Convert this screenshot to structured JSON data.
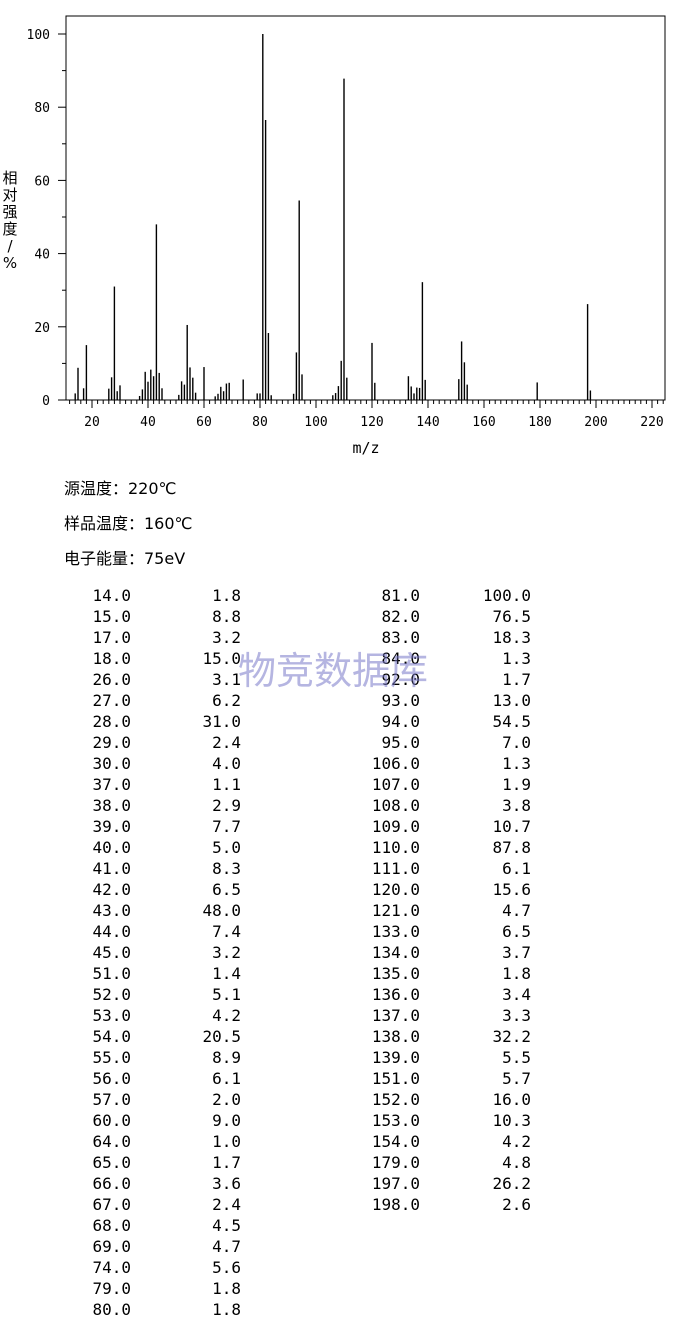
{
  "chart_data": {
    "type": "bar",
    "xlabel": "m/z",
    "ylabel": "相对强度/%",
    "xlim": [
      10,
      225
    ],
    "ylim": [
      0,
      100
    ],
    "xticks": [
      "20",
      "40",
      "60",
      "80",
      "100",
      "120",
      "140",
      "160",
      "180",
      "200",
      "220"
    ],
    "yticks": [
      "0",
      "20",
      "40",
      "60",
      "80",
      "100"
    ],
    "grid": false,
    "peaks": [
      {
        "mz": 14.0,
        "intensity": 1.8
      },
      {
        "mz": 15.0,
        "intensity": 8.8
      },
      {
        "mz": 17.0,
        "intensity": 3.2
      },
      {
        "mz": 18.0,
        "intensity": 15.0
      },
      {
        "mz": 26.0,
        "intensity": 3.1
      },
      {
        "mz": 27.0,
        "intensity": 6.2
      },
      {
        "mz": 28.0,
        "intensity": 31.0
      },
      {
        "mz": 29.0,
        "intensity": 2.4
      },
      {
        "mz": 30.0,
        "intensity": 4.0
      },
      {
        "mz": 37.0,
        "intensity": 1.1
      },
      {
        "mz": 38.0,
        "intensity": 2.9
      },
      {
        "mz": 39.0,
        "intensity": 7.7
      },
      {
        "mz": 40.0,
        "intensity": 5.0
      },
      {
        "mz": 41.0,
        "intensity": 8.3
      },
      {
        "mz": 42.0,
        "intensity": 6.5
      },
      {
        "mz": 43.0,
        "intensity": 48.0
      },
      {
        "mz": 44.0,
        "intensity": 7.4
      },
      {
        "mz": 45.0,
        "intensity": 3.2
      },
      {
        "mz": 51.0,
        "intensity": 1.4
      },
      {
        "mz": 52.0,
        "intensity": 5.1
      },
      {
        "mz": 53.0,
        "intensity": 4.2
      },
      {
        "mz": 54.0,
        "intensity": 20.5
      },
      {
        "mz": 55.0,
        "intensity": 8.9
      },
      {
        "mz": 56.0,
        "intensity": 6.1
      },
      {
        "mz": 57.0,
        "intensity": 2.0
      },
      {
        "mz": 60.0,
        "intensity": 9.0
      },
      {
        "mz": 64.0,
        "intensity": 1.0
      },
      {
        "mz": 65.0,
        "intensity": 1.7
      },
      {
        "mz": 66.0,
        "intensity": 3.6
      },
      {
        "mz": 67.0,
        "intensity": 2.4
      },
      {
        "mz": 68.0,
        "intensity": 4.5
      },
      {
        "mz": 69.0,
        "intensity": 4.7
      },
      {
        "mz": 74.0,
        "intensity": 5.6
      },
      {
        "mz": 79.0,
        "intensity": 1.8
      },
      {
        "mz": 80.0,
        "intensity": 1.8
      },
      {
        "mz": 81.0,
        "intensity": 100.0
      },
      {
        "mz": 82.0,
        "intensity": 76.5
      },
      {
        "mz": 83.0,
        "intensity": 18.3
      },
      {
        "mz": 84.0,
        "intensity": 1.3
      },
      {
        "mz": 92.0,
        "intensity": 1.7
      },
      {
        "mz": 93.0,
        "intensity": 13.0
      },
      {
        "mz": 94.0,
        "intensity": 54.5
      },
      {
        "mz": 95.0,
        "intensity": 7.0
      },
      {
        "mz": 106.0,
        "intensity": 1.3
      },
      {
        "mz": 107.0,
        "intensity": 1.9
      },
      {
        "mz": 108.0,
        "intensity": 3.8
      },
      {
        "mz": 109.0,
        "intensity": 10.7
      },
      {
        "mz": 110.0,
        "intensity": 87.8
      },
      {
        "mz": 111.0,
        "intensity": 6.1
      },
      {
        "mz": 120.0,
        "intensity": 15.6
      },
      {
        "mz": 121.0,
        "intensity": 4.7
      },
      {
        "mz": 133.0,
        "intensity": 6.5
      },
      {
        "mz": 134.0,
        "intensity": 3.7
      },
      {
        "mz": 135.0,
        "intensity": 1.8
      },
      {
        "mz": 136.0,
        "intensity": 3.4
      },
      {
        "mz": 137.0,
        "intensity": 3.3
      },
      {
        "mz": 138.0,
        "intensity": 32.2
      },
      {
        "mz": 139.0,
        "intensity": 5.5
      },
      {
        "mz": 151.0,
        "intensity": 5.7
      },
      {
        "mz": 152.0,
        "intensity": 16.0
      },
      {
        "mz": 153.0,
        "intensity": 10.3
      },
      {
        "mz": 154.0,
        "intensity": 4.2
      },
      {
        "mz": 179.0,
        "intensity": 4.8
      },
      {
        "mz": 197.0,
        "intensity": 26.2
      },
      {
        "mz": 198.0,
        "intensity": 2.6
      }
    ]
  },
  "conditions": {
    "source_temp": "源温度：220℃",
    "sample_temp": "样品温度：160℃",
    "electron_energy": "电子能量：75eV"
  },
  "table": {
    "left": [
      [
        "14.0",
        "1.8"
      ],
      [
        "15.0",
        "8.8"
      ],
      [
        "17.0",
        "3.2"
      ],
      [
        "18.0",
        "15.0"
      ],
      [
        "26.0",
        "3.1"
      ],
      [
        "27.0",
        "6.2"
      ],
      [
        "28.0",
        "31.0"
      ],
      [
        "29.0",
        "2.4"
      ],
      [
        "30.0",
        "4.0"
      ],
      [
        "37.0",
        "1.1"
      ],
      [
        "38.0",
        "2.9"
      ],
      [
        "39.0",
        "7.7"
      ],
      [
        "40.0",
        "5.0"
      ],
      [
        "41.0",
        "8.3"
      ],
      [
        "42.0",
        "6.5"
      ],
      [
        "43.0",
        "48.0"
      ],
      [
        "44.0",
        "7.4"
      ],
      [
        "45.0",
        "3.2"
      ],
      [
        "51.0",
        "1.4"
      ],
      [
        "52.0",
        "5.1"
      ],
      [
        "53.0",
        "4.2"
      ],
      [
        "54.0",
        "20.5"
      ],
      [
        "55.0",
        "8.9"
      ],
      [
        "56.0",
        "6.1"
      ],
      [
        "57.0",
        "2.0"
      ],
      [
        "60.0",
        "9.0"
      ],
      [
        "64.0",
        "1.0"
      ],
      [
        "65.0",
        "1.7"
      ],
      [
        "66.0",
        "3.6"
      ],
      [
        "67.0",
        "2.4"
      ],
      [
        "68.0",
        "4.5"
      ],
      [
        "69.0",
        "4.7"
      ],
      [
        "74.0",
        "5.6"
      ],
      [
        "79.0",
        "1.8"
      ],
      [
        "80.0",
        "1.8"
      ]
    ],
    "right": [
      [
        "81.0",
        "100.0"
      ],
      [
        "82.0",
        "76.5"
      ],
      [
        "83.0",
        "18.3"
      ],
      [
        "84.0",
        "1.3"
      ],
      [
        "92.0",
        "1.7"
      ],
      [
        "93.0",
        "13.0"
      ],
      [
        "94.0",
        "54.5"
      ],
      [
        "95.0",
        "7.0"
      ],
      [
        "106.0",
        "1.3"
      ],
      [
        "107.0",
        "1.9"
      ],
      [
        "108.0",
        "3.8"
      ],
      [
        "109.0",
        "10.7"
      ],
      [
        "110.0",
        "87.8"
      ],
      [
        "111.0",
        "6.1"
      ],
      [
        "120.0",
        "15.6"
      ],
      [
        "121.0",
        "4.7"
      ],
      [
        "133.0",
        "6.5"
      ],
      [
        "134.0",
        "3.7"
      ],
      [
        "135.0",
        "1.8"
      ],
      [
        "136.0",
        "3.4"
      ],
      [
        "137.0",
        "3.3"
      ],
      [
        "138.0",
        "32.2"
      ],
      [
        "139.0",
        "5.5"
      ],
      [
        "151.0",
        "5.7"
      ],
      [
        "152.0",
        "16.0"
      ],
      [
        "153.0",
        "10.3"
      ],
      [
        "154.0",
        "4.2"
      ],
      [
        "179.0",
        "4.8"
      ],
      [
        "197.0",
        "26.2"
      ],
      [
        "198.0",
        "2.6"
      ]
    ]
  },
  "watermark": "物竞数据库"
}
